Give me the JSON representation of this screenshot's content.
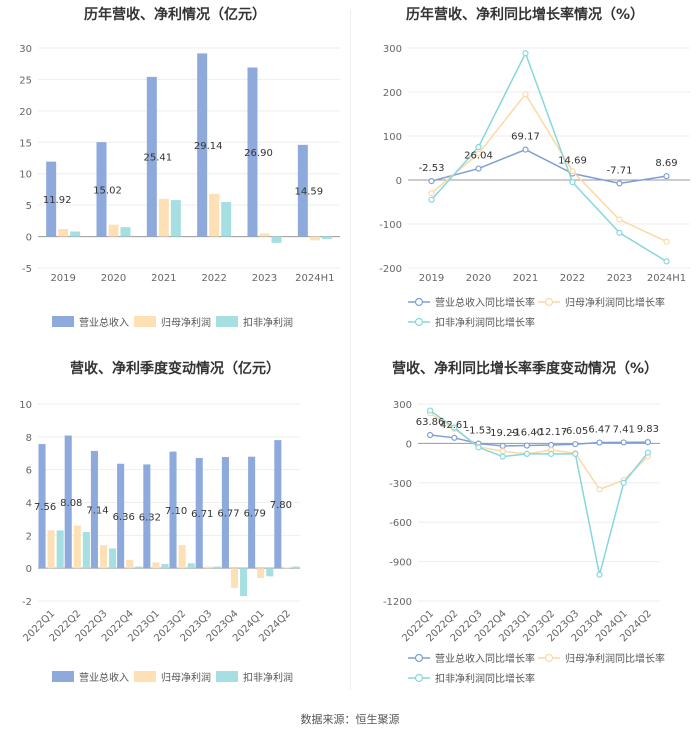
{
  "colors": {
    "revenue": "#8eaadc",
    "net_profit": "#fde0b5",
    "deducted_profit": "#a6dfe2",
    "rev_line": "#7e9fd5",
    "np_line": "#fcd9a3",
    "dp_line": "#86d7dc"
  },
  "source": "数据来源：恒生聚源",
  "chart_data": [
    {
      "id": "annual_bar",
      "type": "bar",
      "title": "历年营收、净利情况（亿元）",
      "categories": [
        "2019",
        "2020",
        "2021",
        "2022",
        "2023",
        "2024H1"
      ],
      "series": [
        {
          "name": "营业总收入",
          "values": [
            11.92,
            15.02,
            25.41,
            29.14,
            26.9,
            14.59
          ],
          "labeled": true
        },
        {
          "name": "归母净利润",
          "values": [
            1.2,
            1.9,
            6.0,
            6.8,
            0.5,
            -0.6
          ]
        },
        {
          "name": "扣非净利润",
          "values": [
            0.8,
            1.5,
            5.8,
            5.5,
            -1.0,
            -0.4
          ]
        }
      ],
      "ylim": [
        -5,
        30
      ],
      "yticks": [
        -5,
        0,
        5,
        10,
        15,
        20,
        25,
        30
      ],
      "legend": "bottom"
    },
    {
      "id": "annual_growth",
      "type": "line",
      "title": "历年营收、净利同比增长率情况（%）",
      "categories": [
        "2019",
        "2020",
        "2021",
        "2022",
        "2023",
        "2024H1"
      ],
      "series": [
        {
          "name": "营业总收入同比增长率",
          "values": [
            -2.53,
            26.04,
            69.17,
            14.69,
            -7.71,
            8.69
          ],
          "labeled": true
        },
        {
          "name": "归母净利润同比增长率",
          "values": [
            -30,
            60,
            195,
            20,
            -90,
            -140
          ]
        },
        {
          "name": "扣非净利润同比增长率",
          "values": [
            -45,
            75,
            288,
            -5,
            -120,
            -185
          ]
        }
      ],
      "ylim": [
        -200,
        300
      ],
      "yticks": [
        -200,
        -100,
        0,
        100,
        200,
        300
      ],
      "legend": "bottom"
    },
    {
      "id": "quarterly_bar",
      "type": "bar",
      "title": "营收、净利季度变动情况（亿元）",
      "categories": [
        "2022Q1",
        "2022Q2",
        "2022Q3",
        "2022Q4",
        "2023Q1",
        "2023Q2",
        "2023Q3",
        "2023Q4",
        "2024Q1",
        "2024Q2"
      ],
      "series": [
        {
          "name": "营业总收入",
          "values": [
            7.56,
            8.08,
            7.14,
            6.36,
            6.32,
            7.1,
            6.71,
            6.77,
            6.79,
            7.8
          ],
          "labeled": true
        },
        {
          "name": "归母净利润",
          "values": [
            2.3,
            2.6,
            1.4,
            0.5,
            0.35,
            1.4,
            0.1,
            -1.2,
            -0.6,
            0.05
          ]
        },
        {
          "name": "扣非净利润",
          "values": [
            2.3,
            2.2,
            1.2,
            0.1,
            0.25,
            0.3,
            0.1,
            -1.7,
            -0.5,
            0.1
          ]
        }
      ],
      "ylim": [
        -2,
        10
      ],
      "yticks": [
        -2,
        0,
        2,
        4,
        6,
        8,
        10
      ],
      "legend": "bottom"
    },
    {
      "id": "quarterly_growth",
      "type": "line",
      "title": "营收、净利同比增长率季度变动情况（%）",
      "categories": [
        "2022Q1",
        "2022Q2",
        "2022Q3",
        "2022Q4",
        "2023Q1",
        "2023Q2",
        "2023Q3",
        "2023Q4",
        "2024Q1",
        "2024Q2"
      ],
      "series": [
        {
          "name": "营业总收入同比增长率",
          "values": [
            63.86,
            42.61,
            -1.53,
            -19.29,
            -16.4,
            -12.17,
            -6.05,
            6.47,
            7.41,
            9.83
          ],
          "labeled": true
        },
        {
          "name": "归母净利润同比增长率",
          "values": [
            230,
            110,
            -25,
            -60,
            -80,
            -50,
            -75,
            -350,
            -280,
            -100
          ]
        },
        {
          "name": "扣非净利润同比增长率",
          "values": [
            250,
            120,
            -30,
            -100,
            -80,
            -80,
            -80,
            -1000,
            -300,
            -70
          ]
        }
      ],
      "ylim": [
        -1200,
        300
      ],
      "yticks": [
        -1200,
        -900,
        -600,
        -300,
        0,
        300
      ],
      "legend": "bottom"
    }
  ]
}
